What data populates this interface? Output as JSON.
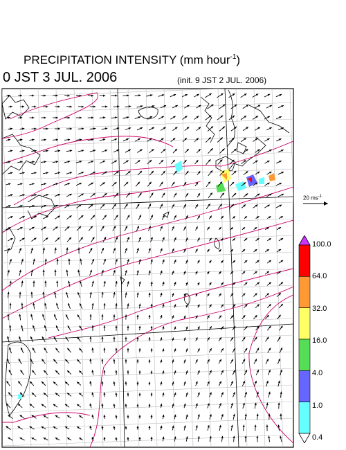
{
  "header": {
    "title_main": "PRECIPITATION INTENSITY (mm hour",
    "title_exponent": "-1",
    "title_close": ")",
    "valid_time": "0 JST 3 JUL. 2006",
    "init_time": "(init. 9 JST 2 JUL. 2006)"
  },
  "wind_legend": {
    "label_main": "20 ms",
    "label_exponent": "-1"
  },
  "colorbar": {
    "ticks": [
      "100.0",
      "64.0",
      "32.0",
      "16.0",
      "4.0",
      "1.0",
      "0.4"
    ],
    "colors": [
      "#ff0000",
      "#ff9933",
      "#ffff66",
      "#55dd55",
      "#6666ff",
      "#66ffff"
    ],
    "top_color": "#cc33ff",
    "bottom_color": "#ffffff"
  },
  "map": {
    "contour_color": "#cc0066",
    "arrow_color": "#000000",
    "coast_color": "#000000",
    "grid_color": "#bbbbbb"
  }
}
